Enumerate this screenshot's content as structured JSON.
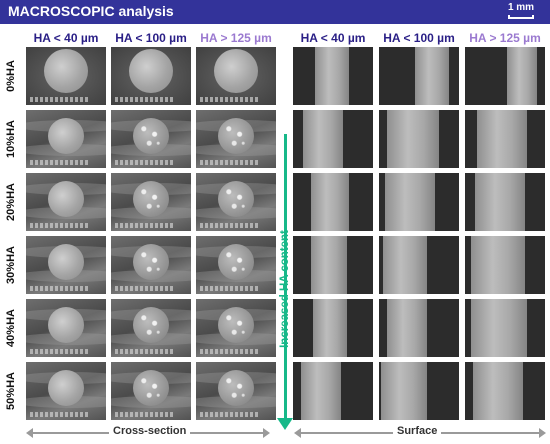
{
  "header": {
    "title": "MACROSCOPIC analysis",
    "scale_label": "1 mm"
  },
  "columns": {
    "cross_section": [
      "HA < 40 µm",
      "HA < 100 µm",
      "HA > 125 µm"
    ],
    "surface": [
      "HA < 40 µm",
      "HA < 100 µm",
      "HA > 125 µm"
    ],
    "colors": [
      "#2a1f86",
      "#2a1f86",
      "#9b7ad0"
    ]
  },
  "rows": [
    "0%HA",
    "10%HA",
    "20%HA",
    "30%HA",
    "40%HA",
    "50%HA"
  ],
  "trend_arrow": {
    "label": "Increased HA content",
    "color": "#17b889"
  },
  "footer": {
    "left_label": "Cross-section",
    "right_label": "Surface"
  }
}
